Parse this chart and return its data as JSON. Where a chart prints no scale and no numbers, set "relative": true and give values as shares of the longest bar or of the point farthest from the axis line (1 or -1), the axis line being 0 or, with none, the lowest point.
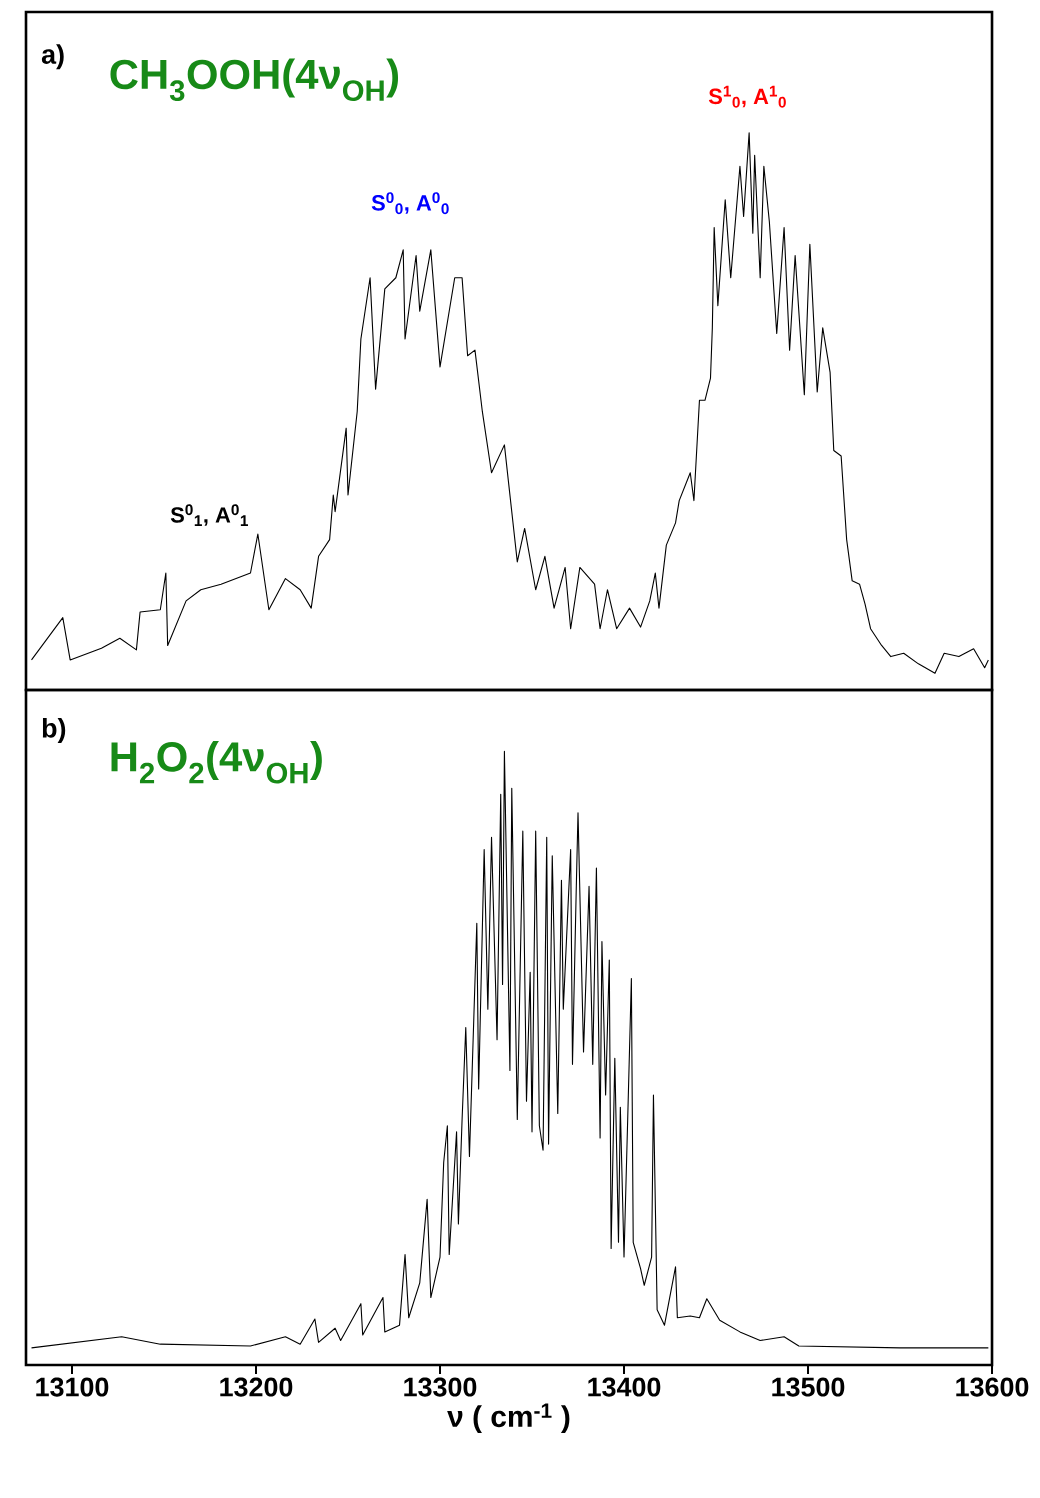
{
  "chart_data": [
    {
      "type": "line",
      "relative": true,
      "title": "CH$_{3}$OOH(4ν$_{OH}$)",
      "color": "#000000",
      "xlim": [
        13075,
        13600
      ],
      "tick_labels": false,
      "annotations": [
        "a)",
        "S$^{0}$$_{1}$, A$^{0}$$_{1}$",
        "S$^{0}$$_{0}$, A$^{0}$$_{0}$",
        "S$^{1}$$_{0}$, A$^{1}$$_{0}$"
      ],
      "x": [
        13078,
        13095,
        13099,
        13116,
        13126,
        13135,
        13137,
        13148,
        13151,
        13152,
        13162,
        13170,
        13181,
        13197,
        13201,
        13207,
        13216,
        13224,
        13230,
        13234,
        13240,
        13242,
        13243,
        13249,
        13250,
        13255,
        13257,
        13262,
        13265,
        13270,
        13276,
        13280,
        13281,
        13287,
        13289,
        13295,
        13300,
        13308,
        13312,
        13315,
        13319,
        13323,
        13328,
        13335,
        13342,
        13346,
        13352,
        13357,
        13362,
        13368,
        13371,
        13376,
        13384,
        13387,
        13391,
        13396,
        13403,
        13409,
        13414,
        13417,
        13419,
        13423,
        13428,
        13430,
        13436,
        13438,
        13441,
        13444,
        13447,
        13448,
        13449,
        13451,
        13455,
        13458,
        13463,
        13465,
        13468,
        13470,
        13471,
        13474,
        13476,
        13479,
        13483,
        13487,
        13490,
        13493,
        13498,
        13501,
        13505,
        13508,
        13512,
        13514,
        13518,
        13521,
        13524,
        13528,
        13531,
        13534,
        13540,
        13545,
        13552,
        13560,
        13569,
        13574,
        13582,
        13590,
        13596,
        13598
      ],
      "values": [
        0.054,
        0.13,
        0.054,
        0.075,
        0.093,
        0.072,
        0.14,
        0.144,
        0.21,
        0.08,
        0.16,
        0.18,
        0.19,
        0.21,
        0.28,
        0.144,
        0.2,
        0.18,
        0.147,
        0.24,
        0.27,
        0.35,
        0.32,
        0.47,
        0.35,
        0.5,
        0.63,
        0.74,
        0.54,
        0.72,
        0.74,
        0.79,
        0.63,
        0.78,
        0.68,
        0.79,
        0.58,
        0.74,
        0.74,
        0.6,
        0.61,
        0.5,
        0.39,
        0.44,
        0.23,
        0.29,
        0.18,
        0.24,
        0.147,
        0.22,
        0.11,
        0.22,
        0.19,
        0.11,
        0.18,
        0.11,
        0.147,
        0.113,
        0.16,
        0.21,
        0.147,
        0.26,
        0.3,
        0.34,
        0.39,
        0.34,
        0.52,
        0.52,
        0.56,
        0.65,
        0.83,
        0.69,
        0.88,
        0.74,
        0.94,
        0.85,
        1.0,
        0.82,
        0.96,
        0.74,
        0.94,
        0.84,
        0.64,
        0.83,
        0.61,
        0.78,
        0.53,
        0.8,
        0.535,
        0.65,
        0.57,
        0.43,
        0.42,
        0.27,
        0.196,
        0.19,
        0.154,
        0.11,
        0.08,
        0.06,
        0.066,
        0.047,
        0.03,
        0.066,
        0.06,
        0.074,
        0.04,
        0.054
      ]
    },
    {
      "type": "line",
      "relative": true,
      "title": "H$_{2}$O$_{2}$(4ν$_{OH}$)",
      "xlabel": "ν ( cm$^{-1}$ )",
      "color": "#000000",
      "xlim": [
        13075,
        13600
      ],
      "xticks": [
        13100,
        13200,
        13300,
        13400,
        13500,
        13600
      ],
      "tick_labels": "x",
      "annotations": [
        "b)"
      ],
      "x": [
        13078,
        13127,
        13148,
        13197,
        13216,
        13224,
        13232,
        13234,
        13243,
        13246,
        13257,
        13258,
        13269,
        13270,
        13278,
        13281,
        13283,
        13289,
        13293,
        13295,
        13300,
        13302,
        13304,
        13305,
        13309,
        13310,
        13312,
        13314,
        13316,
        13320,
        13321,
        13324,
        13326,
        13328,
        13331,
        13333,
        13334,
        13335,
        13338,
        13339,
        13342,
        13345,
        13347,
        13349,
        13350,
        13352,
        13354,
        13356,
        13358,
        13359,
        13361,
        13364,
        13366,
        13367,
        13371,
        13372,
        13374,
        13375,
        13378,
        13381,
        13383,
        13385,
        13387,
        13388,
        13390,
        13392,
        13393,
        13395,
        13397,
        13398,
        13400,
        13402,
        13404,
        13405,
        13409,
        13411,
        13415,
        13416,
        13418,
        13422,
        13428,
        13429,
        13436,
        13441,
        13445,
        13452,
        13463,
        13474,
        13487,
        13495,
        13550,
        13598
      ],
      "values": [
        0.028,
        0.046,
        0.034,
        0.031,
        0.046,
        0.034,
        0.075,
        0.037,
        0.06,
        0.04,
        0.1,
        0.049,
        0.11,
        0.054,
        0.065,
        0.18,
        0.077,
        0.134,
        0.27,
        0.11,
        0.176,
        0.33,
        0.39,
        0.18,
        0.38,
        0.23,
        0.4,
        0.55,
        0.34,
        0.72,
        0.45,
        0.84,
        0.58,
        0.86,
        0.53,
        0.93,
        0.62,
        1.0,
        0.48,
        0.94,
        0.4,
        0.87,
        0.43,
        0.64,
        0.38,
        0.87,
        0.39,
        0.35,
        0.86,
        0.36,
        0.83,
        0.41,
        0.79,
        0.58,
        0.84,
        0.49,
        0.77,
        0.9,
        0.51,
        0.78,
        0.49,
        0.81,
        0.37,
        0.69,
        0.44,
        0.66,
        0.19,
        0.5,
        0.2,
        0.42,
        0.176,
        0.4,
        0.63,
        0.2,
        0.157,
        0.13,
        0.176,
        0.44,
        0.09,
        0.065,
        0.16,
        0.077,
        0.08,
        0.077,
        0.108,
        0.073,
        0.054,
        0.04,
        0.046,
        0.031,
        0.028,
        0.028
      ]
    }
  ]
}
